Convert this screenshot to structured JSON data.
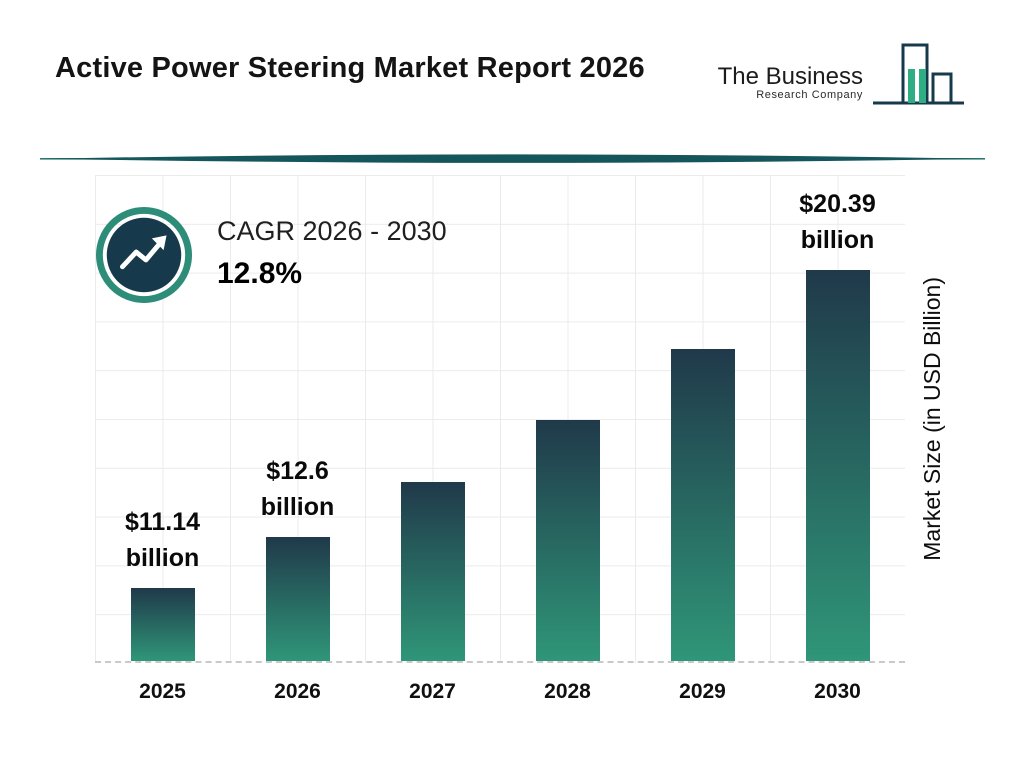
{
  "header": {
    "title": "Active Power Steering Market Report 2026"
  },
  "logo": {
    "line1": "The Business",
    "line2": "Research Company"
  },
  "cagr": {
    "label": "CAGR 2026 - 2030",
    "value": "12.8%"
  },
  "chart_data": {
    "type": "bar",
    "title": "Active Power Steering Market Report 2026",
    "xlabel": "",
    "ylabel": "Market Size (in USD Billion)",
    "categories": [
      "2025",
      "2026",
      "2027",
      "2028",
      "2029",
      "2030"
    ],
    "values": [
      11.14,
      12.6,
      14.21,
      16.03,
      18.08,
      20.39
    ],
    "bar_labels": [
      [
        "$11.14",
        "billion"
      ],
      [
        "$12.6",
        "billion"
      ],
      null,
      null,
      null,
      [
        "$20.39",
        "billion"
      ]
    ],
    "axis_baseline_value": 9,
    "ylim": [
      9,
      21.5
    ],
    "grid": true,
    "legend_position": "none",
    "colors": {
      "bar_top": "#20394a",
      "bar_bottom": "#2f9678",
      "grid": "#ebebeb",
      "divider": "#14565c",
      "divider_line": "#2c7f72",
      "accent_green": "#2fae84",
      "dark_navy": "#16394c",
      "ring_teal": "#2e8d78"
    }
  }
}
